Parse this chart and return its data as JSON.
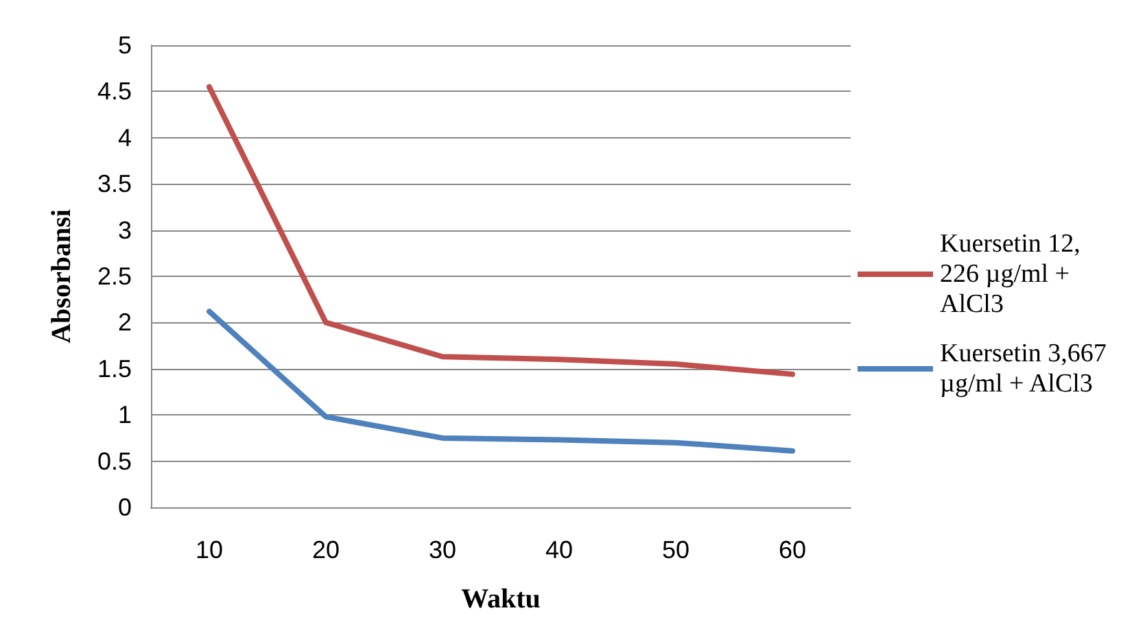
{
  "chart_data": {
    "type": "line",
    "xlabel": "Waktu",
    "ylabel": "Absorbansi",
    "categories": [
      "10",
      "20",
      "30",
      "40",
      "50",
      "60"
    ],
    "series": [
      {
        "name": "Kuersetin 12,226 µg/ml + AlCl3",
        "color": "#c0504d",
        "values": [
          4.55,
          2.0,
          1.63,
          1.6,
          1.55,
          1.44
        ]
      },
      {
        "name": "Kuersetin 3,667 µg/ml + AlCl3",
        "color": "#4f81bd",
        "values": [
          2.12,
          0.98,
          0.75,
          0.73,
          0.7,
          0.61
        ]
      }
    ],
    "ylim": [
      0,
      5
    ],
    "yticks": [
      0,
      0.5,
      1,
      1.5,
      2,
      2.5,
      3,
      3.5,
      4,
      4.5,
      5
    ],
    "grid": "y",
    "legend": "right",
    "marker": "none",
    "line_style": "solid"
  }
}
